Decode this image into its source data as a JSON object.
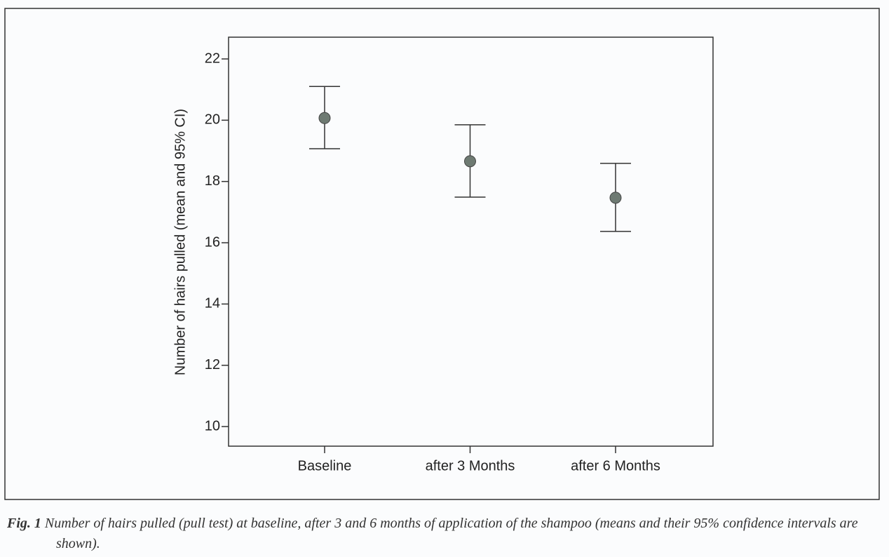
{
  "chart_data": {
    "type": "errorbar",
    "y_label": "Number of hairs pulled (mean and 95% CI)",
    "categories": [
      "Baseline",
      "after 3 Months",
      "after 6 Months"
    ],
    "values": [
      20.07,
      18.66,
      17.47
    ],
    "lower": [
      19.07,
      17.49,
      16.37
    ],
    "upper": [
      21.1,
      19.85,
      18.59
    ],
    "color": "#6e7a72",
    "ylim": [
      9.36,
      22.71
    ],
    "yticks": [
      10,
      12,
      14,
      16,
      18,
      20,
      22
    ]
  },
  "caption": {
    "label": "Fig. 1",
    "text": "Number of hairs pulled (pull test) at baseline, after 3 and 6 months of application of the shampoo (means and their 95% confidence intervals are shown)."
  }
}
